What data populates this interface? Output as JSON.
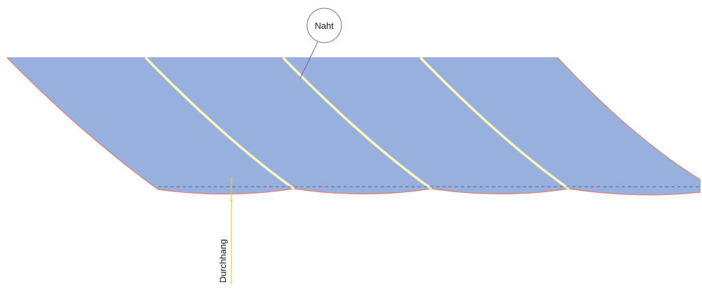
{
  "labels": {
    "seam": "Naht",
    "sag": "Durchhang"
  },
  "colors": {
    "fabric_fill": "#98b0de",
    "fabric_shadow": "#8aa4d6",
    "seam_line": "#fffbd0",
    "seam_glow": "#e9e6a8",
    "edge_line": "#e8806a",
    "callout_circle": "#7b5fb5",
    "callout_leader": "#7b5fb5",
    "sag_marker": "#e3c94a",
    "dashed_baseline": "#5a6a90"
  }
}
